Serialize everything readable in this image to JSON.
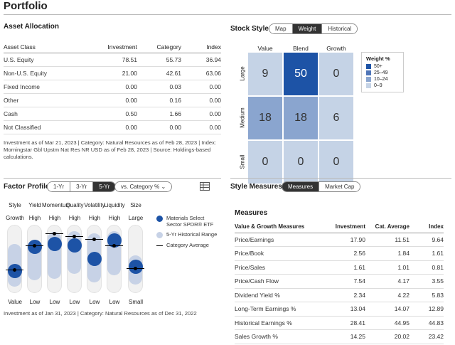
{
  "page": {
    "title": "Portfolio"
  },
  "asset_allocation": {
    "title": "Asset Allocation",
    "columns": [
      "Asset Class",
      "Investment",
      "Category",
      "Index"
    ],
    "rows": [
      [
        "U.S. Equity",
        "78.51",
        "55.73",
        "36.94"
      ],
      [
        "Non-U.S. Equity",
        "21.00",
        "42.61",
        "63.06"
      ],
      [
        "Fixed Income",
        "0.00",
        "0.03",
        "0.00"
      ],
      [
        "Other",
        "0.00",
        "0.16",
        "0.00"
      ],
      [
        "Cash",
        "0.50",
        "1.66",
        "0.00"
      ],
      [
        "Not Classified",
        "0.00",
        "0.00",
        "0.00"
      ]
    ],
    "note": "Investment as of Mar 21, 2023 | Category: Natural Resources as of Feb 28, 2023 | Index: Morningstar Gbl Upstm Nat Res NR USD as of Feb 28, 2023 | Source: Holdings-based calculations."
  },
  "stock_style": {
    "title": "Stock Style",
    "tabs": [
      "Map",
      "Weight",
      "Historical"
    ],
    "active_tab": "Weight",
    "columns": [
      "Value",
      "Blend",
      "Growth"
    ],
    "rows": [
      "Large",
      "Medium",
      "Small"
    ],
    "cells": [
      [
        "9",
        "50",
        "0"
      ],
      [
        "18",
        "18",
        "6"
      ],
      [
        "0",
        "0",
        "0"
      ]
    ],
    "cell_colors": [
      [
        "#c5d3e6",
        "#1d53a6",
        "#c5d3e6"
      ],
      [
        "#8aa5cf",
        "#8aa5cf",
        "#c5d3e6"
      ],
      [
        "#c5d3e6",
        "#c5d3e6",
        "#c5d3e6"
      ]
    ],
    "legend": {
      "title": "Weight %",
      "items": [
        {
          "label": "50+",
          "color": "#1d53a6"
        },
        {
          "label": "25–49",
          "color": "#4f75b8"
        },
        {
          "label": "10–24",
          "color": "#8aa5cf"
        },
        {
          "label": "0–9",
          "color": "#c5d3e6"
        }
      ]
    }
  },
  "factor_profile": {
    "title": "Factor Profile",
    "tabs": [
      "1-Yr",
      "3-Yr",
      "5-Yr"
    ],
    "active_tab": "5-Yr",
    "dropdown": "vs. Category %",
    "table_icon": "table-icon",
    "factors": [
      {
        "name": "Style",
        "high": "Growth",
        "low": "Value",
        "value": 0.32,
        "range": [
          0.08,
          0.72
        ],
        "avg": 0.34
      },
      {
        "name": "Yield",
        "high": "High",
        "low": "Low",
        "value": 0.68,
        "range": [
          0.18,
          0.78
        ],
        "avg": 0.7
      },
      {
        "name": "Momentum",
        "high": "High",
        "low": "Low",
        "value": 0.72,
        "range": [
          0.2,
          0.9
        ],
        "avg": 0.88
      },
      {
        "name": "Quality",
        "high": "High",
        "low": "Low",
        "value": 0.7,
        "range": [
          0.28,
          0.92
        ],
        "avg": 0.84
      },
      {
        "name": "Volatility",
        "high": "High",
        "low": "Low",
        "value": 0.5,
        "range": [
          0.15,
          0.88
        ],
        "avg": 0.8
      },
      {
        "name": "Liquidity",
        "high": "High",
        "low": "Low",
        "value": 0.78,
        "range": [
          0.25,
          0.92
        ],
        "avg": 0.7
      },
      {
        "name": "Size",
        "high": "Large",
        "low": "Small",
        "value": 0.38,
        "range": [
          0.12,
          0.55
        ],
        "avg": 0.36
      }
    ],
    "legend": [
      {
        "label": "Materials Select Sector SPDR® ETF",
        "color": "#1d53a6",
        "kind": "dot"
      },
      {
        "label": "5-Yr Historical Range",
        "color": "#c7d2e6",
        "kind": "range"
      },
      {
        "label": "Category Average",
        "color": "#000000",
        "kind": "avg"
      }
    ],
    "note": "Investment as of Jan 31, 2023 | Category: Natural Resources as of Dec 31, 2022"
  },
  "style_measures": {
    "title": "Style Measures",
    "tabs": [
      "Measures",
      "Market Cap"
    ],
    "active_tab": "Measures",
    "section_title": "Measures",
    "columns": [
      "Value & Growth Measures",
      "Investment",
      "Cat. Average",
      "Index"
    ],
    "rows": [
      [
        "Price/Earnings",
        "17.90",
        "11.51",
        "9.64"
      ],
      [
        "Price/Book",
        "2.56",
        "1.84",
        "1.61"
      ],
      [
        "Price/Sales",
        "1.61",
        "1.01",
        "0.81"
      ],
      [
        "Price/Cash Flow",
        "7.54",
        "4.17",
        "3.55"
      ],
      [
        "Dividend Yield %",
        "2.34",
        "4.22",
        "5.83"
      ],
      [
        "Long-Term Earnings %",
        "13.04",
        "14.07",
        "12.89"
      ],
      [
        "Historical Earnings %",
        "28.41",
        "44.95",
        "44.83"
      ],
      [
        "Sales Growth %",
        "14.25",
        "20.02",
        "23.42"
      ]
    ]
  }
}
